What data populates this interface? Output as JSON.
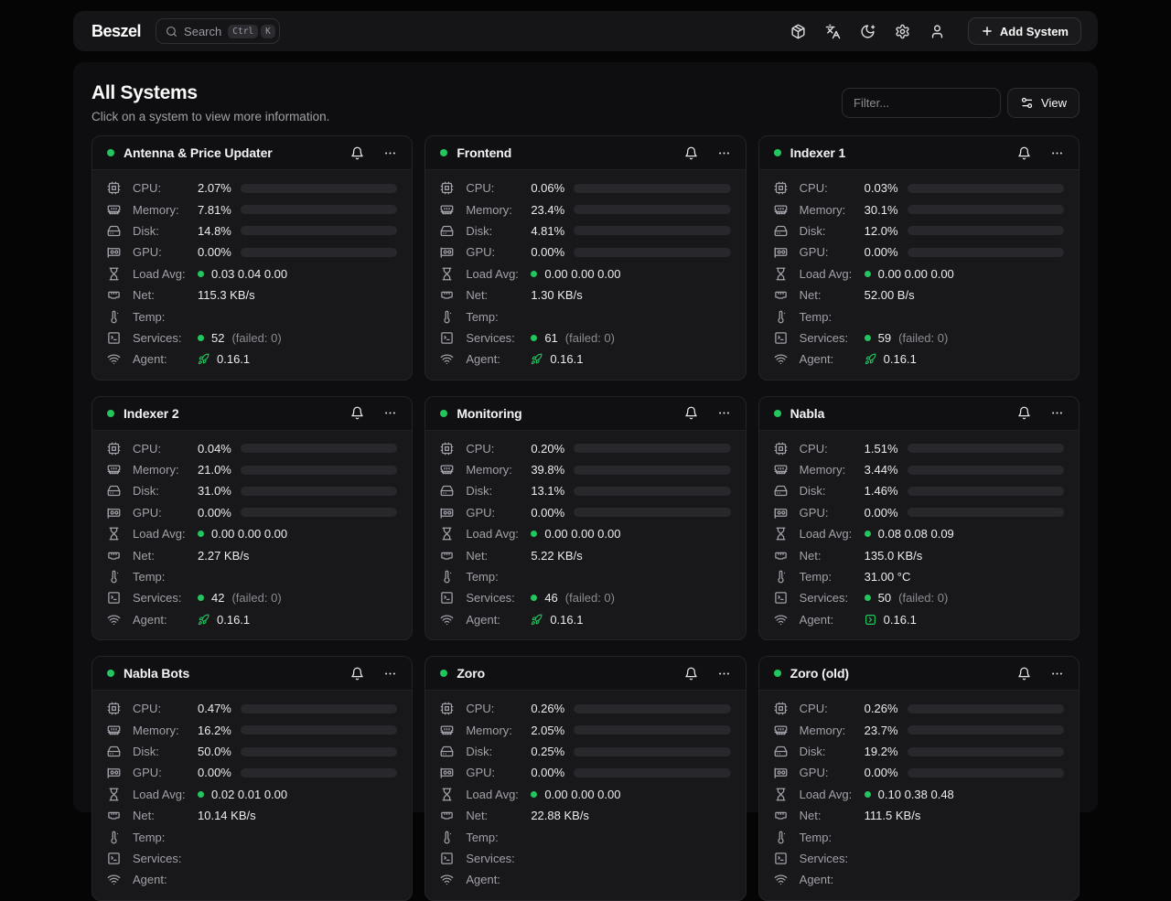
{
  "nav": {
    "logo": "Beszel",
    "search": {
      "placeholder": "Search",
      "kbd_keys": [
        "Ctrl",
        "K"
      ]
    },
    "icon_names": [
      "package-icon",
      "languages-icon",
      "dark-mode-moon-icon",
      "settings-gear-icon",
      "user-icon"
    ],
    "add_system": {
      "label": "Add System"
    }
  },
  "page": {
    "title": "All Systems",
    "subtitle": "Click on a system to view more information.",
    "filter_placeholder": "Filter...",
    "view_button": "View"
  },
  "row_labels": {
    "cpu": "CPU:",
    "memory": "Memory:",
    "disk": "Disk:",
    "gpu": "GPU:",
    "load_avg": "Load Avg:",
    "net": "Net:",
    "temp": "Temp:",
    "services": "Services:",
    "agent": "Agent:"
  },
  "row_icon_names": [
    "cpu-chip-icon",
    "memory-stick-icon",
    "hard-drive-icon",
    "gpu-card-icon",
    "hourglass-icon",
    "ethernet-port-icon",
    "thermometer-icon",
    "services-terminal-icon",
    "wifi-icon"
  ],
  "colors": {
    "accent_green": "#22c55e",
    "bar_green": "#3fbd68"
  },
  "systems": [
    {
      "name": "Antenna & Price Updater",
      "cpu": {
        "text": "2.07%",
        "pct": 2.07
      },
      "memory": {
        "text": "7.81%",
        "pct": 7.81
      },
      "disk": {
        "text": "14.8%",
        "pct": 14.8
      },
      "gpu": {
        "text": "0.00%",
        "pct": 0
      },
      "load_avg": "0.03 0.04 0.00",
      "net": "115.3 KB/s",
      "temp": "",
      "services": {
        "count": "52",
        "failed": "(failed: 0)"
      },
      "agent": {
        "version": "0.16.1",
        "icon": "rocket"
      }
    },
    {
      "name": "Frontend",
      "cpu": {
        "text": "0.06%",
        "pct": 0.06
      },
      "memory": {
        "text": "23.4%",
        "pct": 23.4
      },
      "disk": {
        "text": "4.81%",
        "pct": 4.81
      },
      "gpu": {
        "text": "0.00%",
        "pct": 0
      },
      "load_avg": "0.00 0.00 0.00",
      "net": "1.30 KB/s",
      "temp": "",
      "services": {
        "count": "61",
        "failed": "(failed: 0)"
      },
      "agent": {
        "version": "0.16.1",
        "icon": "rocket"
      }
    },
    {
      "name": "Indexer 1",
      "cpu": {
        "text": "0.03%",
        "pct": 0.03
      },
      "memory": {
        "text": "30.1%",
        "pct": 30.1
      },
      "disk": {
        "text": "12.0%",
        "pct": 12.0
      },
      "gpu": {
        "text": "0.00%",
        "pct": 0
      },
      "load_avg": "0.00 0.00 0.00",
      "net": "52.00 B/s",
      "temp": "",
      "services": {
        "count": "59",
        "failed": "(failed: 0)"
      },
      "agent": {
        "version": "0.16.1",
        "icon": "rocket"
      }
    },
    {
      "name": "Indexer 2",
      "cpu": {
        "text": "0.04%",
        "pct": 0.04
      },
      "memory": {
        "text": "21.0%",
        "pct": 21.0
      },
      "disk": {
        "text": "31.0%",
        "pct": 31.0
      },
      "gpu": {
        "text": "0.00%",
        "pct": 0
      },
      "load_avg": "0.00 0.00 0.00",
      "net": "2.27 KB/s",
      "temp": "",
      "services": {
        "count": "42",
        "failed": "(failed: 0)"
      },
      "agent": {
        "version": "0.16.1",
        "icon": "rocket"
      }
    },
    {
      "name": "Monitoring",
      "cpu": {
        "text": "0.20%",
        "pct": 0.2
      },
      "memory": {
        "text": "39.8%",
        "pct": 39.8
      },
      "disk": {
        "text": "13.1%",
        "pct": 13.1
      },
      "gpu": {
        "text": "0.00%",
        "pct": 0
      },
      "load_avg": "0.00 0.00 0.00",
      "net": "5.22 KB/s",
      "temp": "",
      "services": {
        "count": "46",
        "failed": "(failed: 0)"
      },
      "agent": {
        "version": "0.16.1",
        "icon": "rocket"
      }
    },
    {
      "name": "Nabla",
      "cpu": {
        "text": "1.51%",
        "pct": 1.51
      },
      "memory": {
        "text": "3.44%",
        "pct": 3.44
      },
      "disk": {
        "text": "1.46%",
        "pct": 1.46
      },
      "gpu": {
        "text": "0.00%",
        "pct": 0
      },
      "load_avg": "0.08 0.08 0.09",
      "net": "135.0 KB/s",
      "temp": "31.00 °C",
      "services": {
        "count": "50",
        "failed": "(failed: 0)"
      },
      "agent": {
        "version": "0.16.1",
        "icon": "square-chevron"
      }
    },
    {
      "name": "Nabla Bots",
      "cpu": {
        "text": "0.47%",
        "pct": 0.47
      },
      "memory": {
        "text": "16.2%",
        "pct": 16.2
      },
      "disk": {
        "text": "50.0%",
        "pct": 50.0
      },
      "gpu": {
        "text": "0.00%",
        "pct": 0
      },
      "load_avg": "0.02 0.01 0.00",
      "net": "10.14 KB/s",
      "temp": "",
      "services": {
        "count": "",
        "failed": ""
      },
      "agent": {
        "version": "",
        "icon": "rocket"
      }
    },
    {
      "name": "Zoro",
      "cpu": {
        "text": "0.26%",
        "pct": 0.26
      },
      "memory": {
        "text": "2.05%",
        "pct": 2.05
      },
      "disk": {
        "text": "0.25%",
        "pct": 0.25
      },
      "gpu": {
        "text": "0.00%",
        "pct": 0
      },
      "load_avg": "0.00 0.00 0.00",
      "net": "22.88 KB/s",
      "temp": "",
      "services": {
        "count": "",
        "failed": ""
      },
      "agent": {
        "version": "",
        "icon": "rocket"
      }
    },
    {
      "name": "Zoro (old)",
      "cpu": {
        "text": "0.26%",
        "pct": 0.26
      },
      "memory": {
        "text": "23.7%",
        "pct": 23.7
      },
      "disk": {
        "text": "19.2%",
        "pct": 19.2
      },
      "gpu": {
        "text": "0.00%",
        "pct": 0
      },
      "load_avg": "0.10 0.38 0.48",
      "net": "111.5 KB/s",
      "temp": "",
      "services": {
        "count": "",
        "failed": ""
      },
      "agent": {
        "version": "",
        "icon": "rocket"
      }
    }
  ]
}
